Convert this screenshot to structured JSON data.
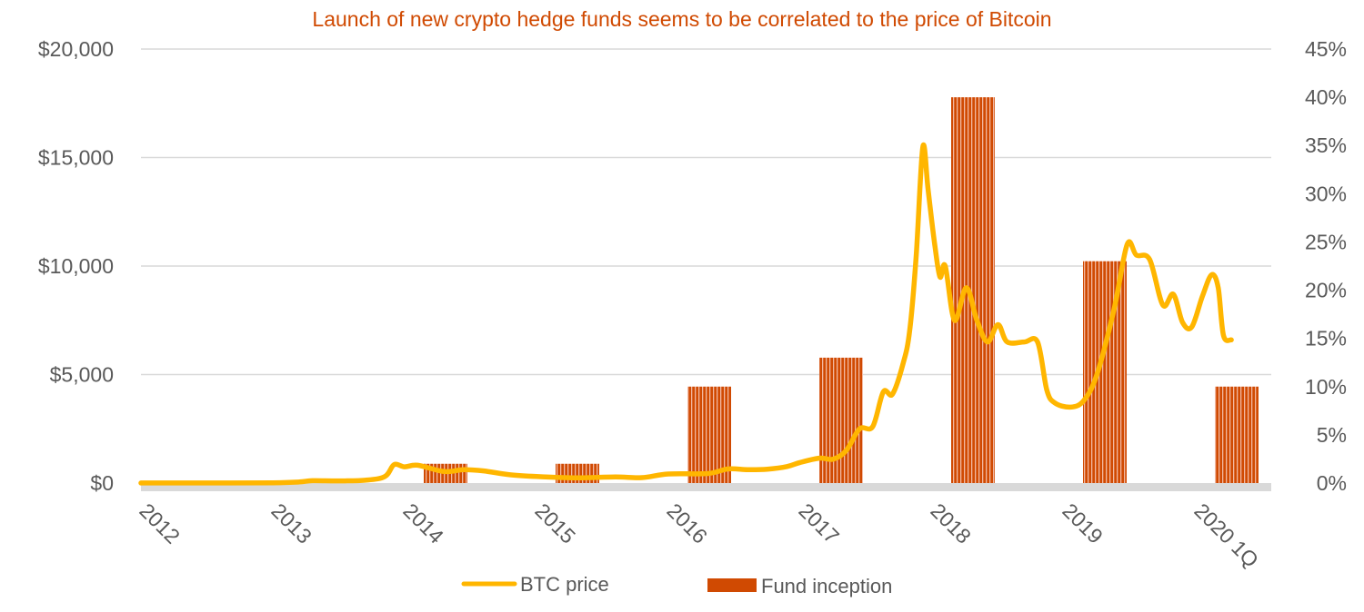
{
  "chart_data": {
    "type": "bar+line",
    "title": "Launch of new crypto hedge funds seems to be correlated to the price of Bitcoin",
    "categories": [
      "2012",
      "2013",
      "2014",
      "2015",
      "2016",
      "2017",
      "2018",
      "2019",
      "2020 1Q"
    ],
    "y_left": {
      "ticks": [
        "$0",
        "$5,000",
        "$10,000",
        "$15,000",
        "$20,000"
      ],
      "range": [
        0,
        20000
      ]
    },
    "y_right": {
      "ticks": [
        "0%",
        "5%",
        "10%",
        "15%",
        "20%",
        "25%",
        "30%",
        "35%",
        "40%",
        "45%"
      ],
      "range": [
        0,
        45
      ]
    },
    "grid": true,
    "legend_position": "bottom",
    "bar_series": {
      "name": "Fund inception",
      "axis": "right",
      "color": "#d04a02",
      "values": [
        0,
        0,
        2,
        2,
        10,
        13,
        40,
        23,
        10
      ]
    },
    "line_series": {
      "name": "BTC price",
      "axis": "left",
      "color": "#ffb600",
      "points": [
        [
          2012.0,
          5
        ],
        [
          2012.5,
          6
        ],
        [
          2013.0,
          13
        ],
        [
          2013.2,
          50
        ],
        [
          2013.3,
          110
        ],
        [
          2013.5,
          100
        ],
        [
          2013.7,
          130
        ],
        [
          2013.85,
          300
        ],
        [
          2013.92,
          850
        ],
        [
          2014.0,
          750
        ],
        [
          2014.1,
          820
        ],
        [
          2014.3,
          530
        ],
        [
          2014.45,
          620
        ],
        [
          2014.6,
          560
        ],
        [
          2014.8,
          380
        ],
        [
          2015.0,
          300
        ],
        [
          2015.3,
          240
        ],
        [
          2015.6,
          280
        ],
        [
          2015.8,
          250
        ],
        [
          2016.0,
          420
        ],
        [
          2016.3,
          440
        ],
        [
          2016.45,
          650
        ],
        [
          2016.6,
          620
        ],
        [
          2016.75,
          640
        ],
        [
          2016.9,
          760
        ],
        [
          2017.0,
          950
        ],
        [
          2017.15,
          1150
        ],
        [
          2017.25,
          1100
        ],
        [
          2017.35,
          1500
        ],
        [
          2017.45,
          2500
        ],
        [
          2017.55,
          2600
        ],
        [
          2017.63,
          4200
        ],
        [
          2017.7,
          4100
        ],
        [
          2017.78,
          5500
        ],
        [
          2017.83,
          7000
        ],
        [
          2017.88,
          10500
        ],
        [
          2017.93,
          15500
        ],
        [
          2017.97,
          13500
        ],
        [
          2018.02,
          11000
        ],
        [
          2018.06,
          9500
        ],
        [
          2018.1,
          10000
        ],
        [
          2018.17,
          7500
        ],
        [
          2018.26,
          9000
        ],
        [
          2018.34,
          7500
        ],
        [
          2018.42,
          6500
        ],
        [
          2018.5,
          7300
        ],
        [
          2018.57,
          6500
        ],
        [
          2018.7,
          6500
        ],
        [
          2018.8,
          6500
        ],
        [
          2018.87,
          4300
        ],
        [
          2018.93,
          3700
        ],
        [
          2019.05,
          3500
        ],
        [
          2019.15,
          3800
        ],
        [
          2019.25,
          5000
        ],
        [
          2019.38,
          8000
        ],
        [
          2019.48,
          11000
        ],
        [
          2019.55,
          10500
        ],
        [
          2019.65,
          10300
        ],
        [
          2019.75,
          8200
        ],
        [
          2019.83,
          8700
        ],
        [
          2019.9,
          7400
        ],
        [
          2019.97,
          7200
        ],
        [
          2020.05,
          8600
        ],
        [
          2020.12,
          9600
        ],
        [
          2020.17,
          9000
        ],
        [
          2020.21,
          6800
        ],
        [
          2020.27,
          6600
        ]
      ]
    }
  }
}
